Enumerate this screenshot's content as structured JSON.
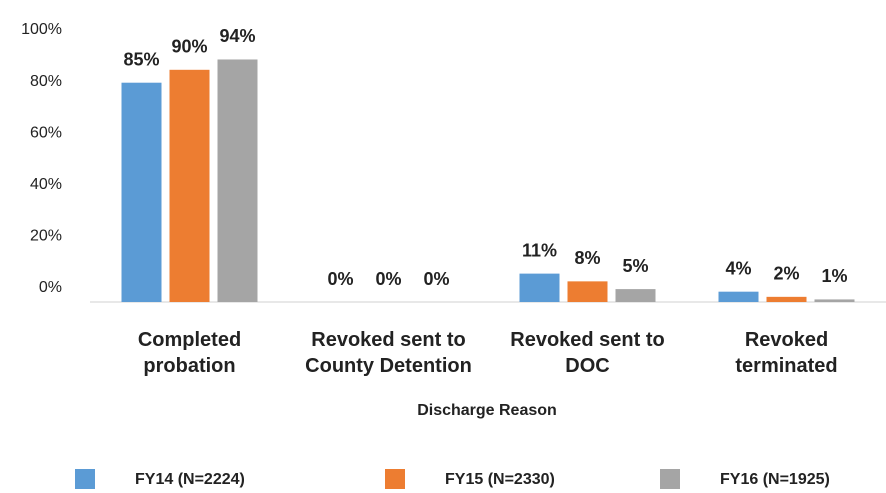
{
  "chart_data": {
    "type": "bar",
    "x_label": "Discharge Reason",
    "categories": [
      "Completed probation",
      "Revoked sent to County Detention",
      "Revoked sent to DOC",
      "Revoked terminated"
    ],
    "series": [
      {
        "name": "FY14 (N=2224)",
        "color": "#5b9bd5",
        "values": [
          85,
          0,
          11,
          4
        ],
        "value_labels": [
          "85%",
          "0%",
          "11%",
          "4%"
        ]
      },
      {
        "name": "FY15 (N=2330)",
        "color": "#ed7d31",
        "values": [
          90,
          0,
          8,
          2
        ],
        "value_labels": [
          "90%",
          "0%",
          "8%",
          "2%"
        ]
      },
      {
        "name": "FY16 (N=1925)",
        "color": "#a5a5a5",
        "values": [
          94,
          0,
          5,
          1
        ],
        "value_labels": [
          "94%",
          "0%",
          "5%",
          "1%"
        ]
      }
    ],
    "ylim": [
      0,
      100
    ],
    "yticks": [
      {
        "value": 0,
        "label": "0%"
      },
      {
        "value": 20,
        "label": "20%"
      },
      {
        "value": 40,
        "label": "40%"
      },
      {
        "value": 60,
        "label": "60%"
      },
      {
        "value": 80,
        "label": "80%"
      },
      {
        "value": 100,
        "label": "100%"
      }
    ],
    "grid": false,
    "legend": "bottom"
  }
}
